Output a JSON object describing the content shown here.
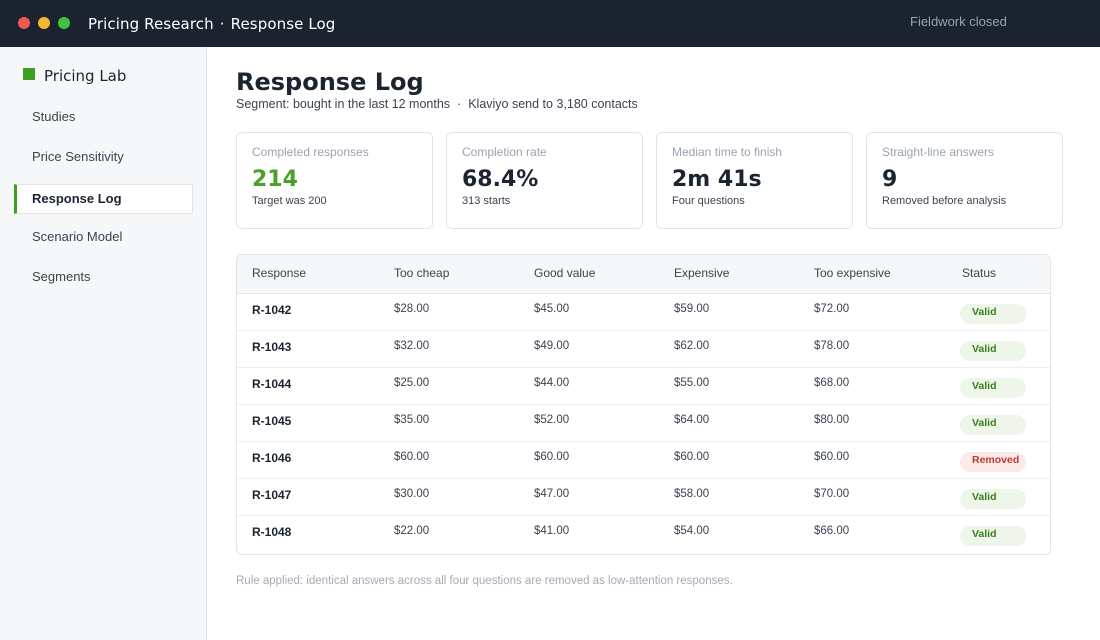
{
  "titlebar": {
    "app": "Pricing Research",
    "separator": "·",
    "page": "Response Log",
    "status": "Fieldwork closed"
  },
  "sidebar": {
    "brand": "Pricing Lab",
    "items": [
      {
        "label": "Studies"
      },
      {
        "label": "Price Sensitivity"
      },
      {
        "label": "Response Log",
        "active": true
      },
      {
        "label": "Scenario Model"
      },
      {
        "label": "Segments"
      }
    ]
  },
  "main": {
    "title": "Response Log",
    "subtitle_segment": "Segment: bought in the last 12 months",
    "subtitle_sep": "·",
    "subtitle_send": "Klaviyo send to 3,180 contacts"
  },
  "cards": [
    {
      "label": "Completed responses",
      "value": "214",
      "note": "Target was 200",
      "accent": true
    },
    {
      "label": "Completion rate",
      "value": "68.4%",
      "note": "313 starts"
    },
    {
      "label": "Median time to finish",
      "value": "2m 41s",
      "note": "Four questions"
    },
    {
      "label": "Straight-line answers",
      "value": "9",
      "note": "Removed before analysis"
    }
  ],
  "table": {
    "headers": [
      "Response",
      "Too cheap",
      "Good value",
      "Expensive",
      "Too expensive",
      "Status"
    ],
    "rows": [
      {
        "id": "R-1042",
        "too_cheap": "$28.00",
        "good_value": "$45.00",
        "expensive": "$59.00",
        "too_expensive": "$72.00",
        "status": "Valid"
      },
      {
        "id": "R-1043",
        "too_cheap": "$32.00",
        "good_value": "$49.00",
        "expensive": "$62.00",
        "too_expensive": "$78.00",
        "status": "Valid"
      },
      {
        "id": "R-1044",
        "too_cheap": "$25.00",
        "good_value": "$44.00",
        "expensive": "$55.00",
        "too_expensive": "$68.00",
        "status": "Valid"
      },
      {
        "id": "R-1045",
        "too_cheap": "$35.00",
        "good_value": "$52.00",
        "expensive": "$64.00",
        "too_expensive": "$80.00",
        "status": "Valid"
      },
      {
        "id": "R-1046",
        "too_cheap": "$60.00",
        "good_value": "$60.00",
        "expensive": "$60.00",
        "too_expensive": "$60.00",
        "status": "Removed"
      },
      {
        "id": "R-1047",
        "too_cheap": "$30.00",
        "good_value": "$47.00",
        "expensive": "$58.00",
        "too_expensive": "$70.00",
        "status": "Valid"
      },
      {
        "id": "R-1048",
        "too_cheap": "$22.00",
        "good_value": "$41.00",
        "expensive": "$54.00",
        "too_expensive": "$66.00",
        "status": "Valid"
      }
    ]
  },
  "footnote": "Rule applied: identical answers across all four questions are removed as low-attention responses.",
  "colors": {
    "accent": "#3f9e22",
    "titlebar": "#1b2230",
    "valid_bg": "#edf6e8",
    "removed_bg": "#fbeaea"
  },
  "icons": [
    "window-close-icon",
    "window-minimize-icon",
    "window-zoom-icon",
    "brand-square-icon"
  ]
}
